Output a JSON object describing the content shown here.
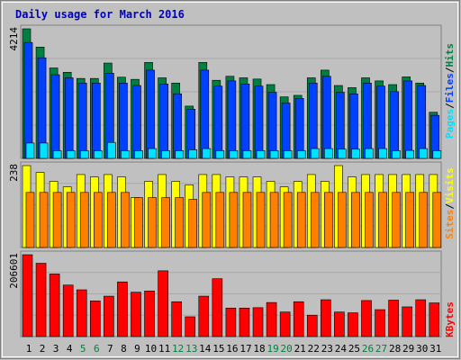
{
  "title": "Daily usage for March 2016",
  "colors": {
    "background": "#c0c0c0",
    "grid": "#a8a8a8",
    "title": "#0000c0",
    "hits": "#008040",
    "files": "#0040ff",
    "pages": "#00e0ff",
    "visits": "#ffff00",
    "sites": "#ff8000",
    "kbytes": "#ff0000",
    "weekend": "#008040",
    "weekday": "#000000"
  },
  "chart_data": [
    {
      "type": "bar",
      "max_label": "4214",
      "ymax": 4214,
      "legend": [
        "Pages",
        "Files",
        "Hits"
      ],
      "days": [
        "1",
        "2",
        "3",
        "4",
        "5",
        "6",
        "7",
        "8",
        "9",
        "10",
        "11",
        "12",
        "13",
        "14",
        "15",
        "16",
        "17",
        "18",
        "19",
        "20",
        "21",
        "22",
        "23",
        "24",
        "25",
        "26",
        "27",
        "28",
        "29",
        "30",
        "31"
      ],
      "weekend_days": [
        "5",
        "6",
        "12",
        "13",
        "19",
        "20",
        "26",
        "27"
      ],
      "series": [
        {
          "name": "Hits",
          "values": [
            4214,
            3620,
            2940,
            2800,
            2600,
            2600,
            3100,
            2640,
            2570,
            3120,
            2620,
            2450,
            1700,
            3120,
            2540,
            2670,
            2620,
            2580,
            2400,
            2000,
            2050,
            2620,
            2870,
            2370,
            2300,
            2620,
            2520,
            2400,
            2650,
            2450,
            1500
          ]
        },
        {
          "name": "Files",
          "values": [
            3770,
            3270,
            2720,
            2620,
            2450,
            2450,
            2770,
            2450,
            2370,
            2870,
            2420,
            2100,
            1600,
            2870,
            2350,
            2520,
            2420,
            2350,
            2150,
            1800,
            1950,
            2450,
            2670,
            2150,
            2100,
            2450,
            2350,
            2170,
            2520,
            2370,
            1400
          ]
        },
        {
          "name": "Pages",
          "values": [
            500,
            500,
            250,
            250,
            250,
            250,
            520,
            250,
            250,
            320,
            250,
            250,
            280,
            320,
            250,
            250,
            250,
            250,
            250,
            250,
            250,
            320,
            320,
            300,
            300,
            320,
            320,
            250,
            260,
            320,
            250
          ]
        }
      ]
    },
    {
      "type": "bar",
      "max_label": "238",
      "ymax": 238,
      "legend": [
        "Sites",
        "Visits"
      ],
      "days": [
        "1",
        "2",
        "3",
        "4",
        "5",
        "6",
        "7",
        "8",
        "9",
        "10",
        "11",
        "12",
        "13",
        "14",
        "15",
        "16",
        "17",
        "18",
        "19",
        "20",
        "21",
        "22",
        "23",
        "24",
        "25",
        "26",
        "27",
        "28",
        "29",
        "30",
        "31"
      ],
      "series": [
        {
          "name": "Visits",
          "values": [
            238,
            218,
            192,
            176,
            212,
            205,
            212,
            205,
            145,
            192,
            212,
            192,
            182,
            212,
            212,
            205,
            205,
            205,
            192,
            176,
            192,
            212,
            192,
            238,
            205,
            212,
            212,
            212,
            212,
            212,
            212
          ]
        },
        {
          "name": "Sites",
          "values": [
            160,
            160,
            160,
            160,
            160,
            160,
            160,
            160,
            145,
            145,
            145,
            145,
            140,
            160,
            160,
            160,
            160,
            160,
            160,
            160,
            160,
            160,
            160,
            160,
            160,
            160,
            160,
            160,
            160,
            160,
            160
          ]
        }
      ]
    },
    {
      "type": "bar",
      "max_label": "206601",
      "ymax": 206601,
      "legend": [
        "KBytes"
      ],
      "days": [
        "1",
        "2",
        "3",
        "4",
        "5",
        "6",
        "7",
        "8",
        "9",
        "10",
        "11",
        "12",
        "13",
        "14",
        "15",
        "16",
        "17",
        "18",
        "19",
        "20",
        "21",
        "22",
        "23",
        "24",
        "25",
        "26",
        "27",
        "28",
        "29",
        "30",
        "31"
      ],
      "series": [
        {
          "name": "KBytes",
          "values": [
            206601,
            185000,
            158000,
            130000,
            118000,
            90000,
            102000,
            138000,
            112000,
            115000,
            166000,
            88000,
            50000,
            102000,
            146000,
            72000,
            72000,
            73000,
            86000,
            62000,
            88000,
            54000,
            93000,
            62000,
            60000,
            91000,
            68000,
            92000,
            75000,
            93000,
            85000
          ]
        }
      ]
    }
  ]
}
